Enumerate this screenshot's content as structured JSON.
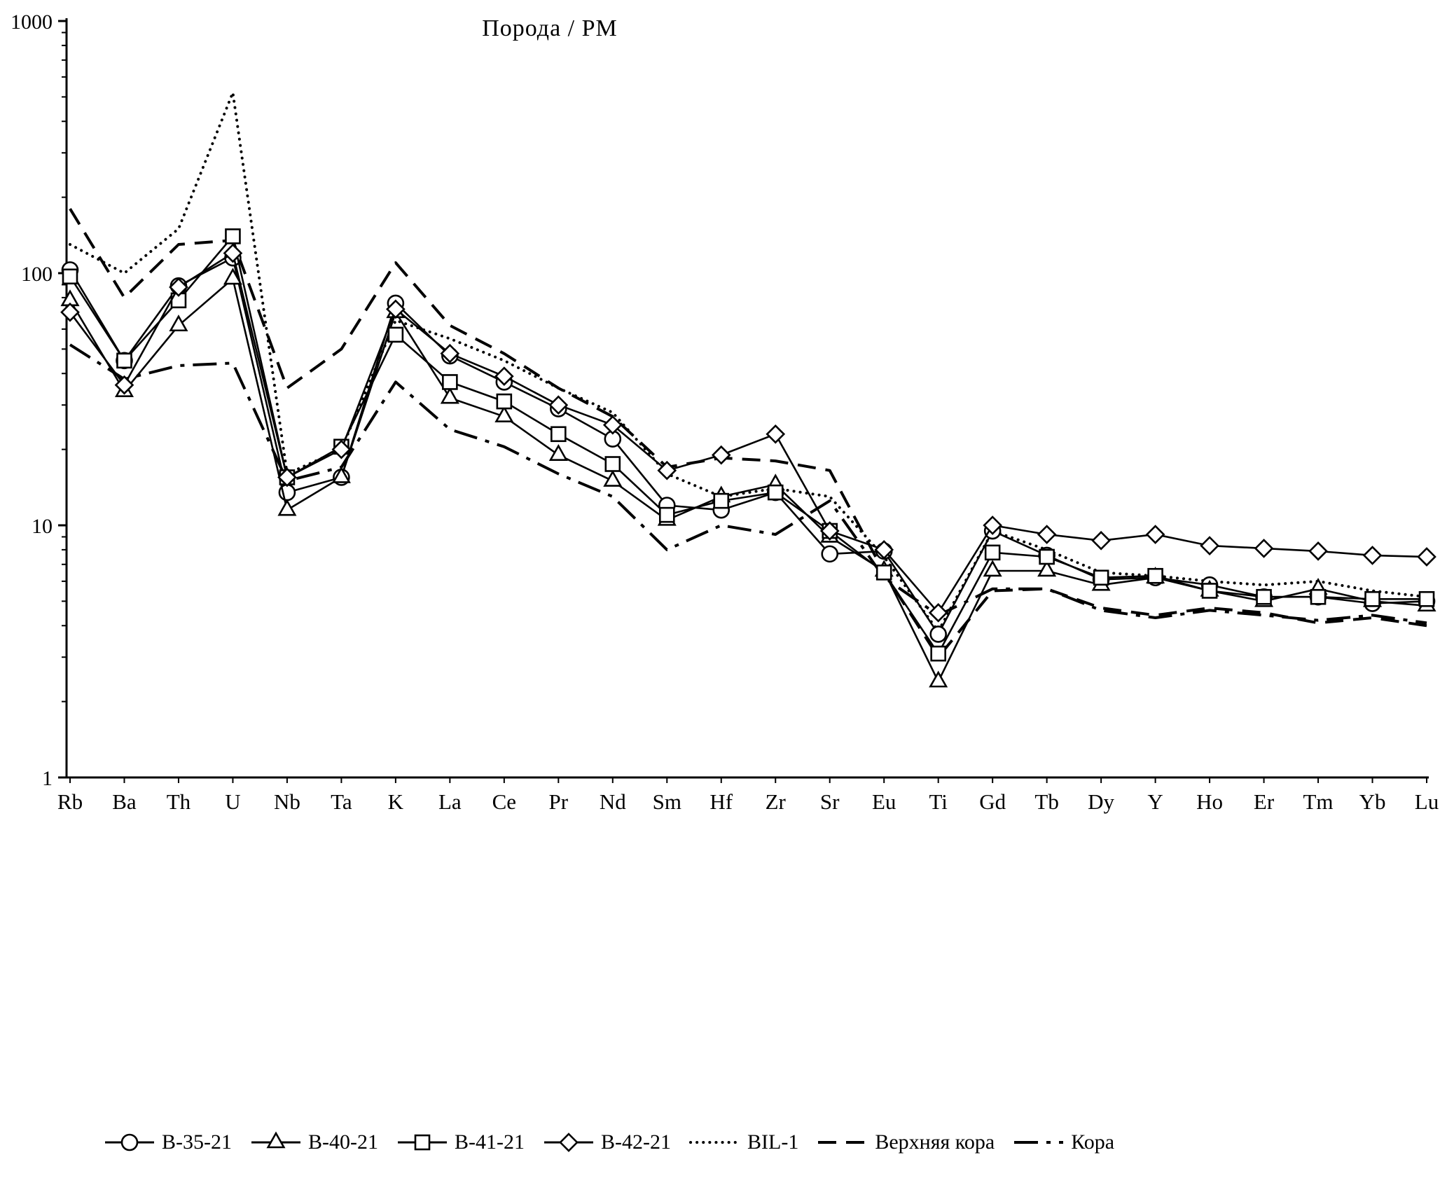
{
  "chart_data": {
    "type": "line",
    "title": "Порода / PM",
    "y_scale": "log",
    "ylim": [
      1,
      1000
    ],
    "y_ticks": [
      1000,
      100,
      10,
      1
    ],
    "grid": false,
    "legend_position": "bottom",
    "line_color": "#000000",
    "categories": [
      "Rb",
      "Ba",
      "Th",
      "U",
      "Nb",
      "Ta",
      "K",
      "La",
      "Ce",
      "Pr",
      "Nd",
      "Sm",
      "Hf",
      "Zr",
      "Sr",
      "Eu",
      "Ti",
      "Gd",
      "Tb",
      "Dy",
      "Y",
      "Ho",
      "Er",
      "Tm",
      "Yb",
      "Lu"
    ],
    "series": [
      {
        "name": "B-35-21",
        "marker": "circle",
        "line": "solid",
        "values": [
          103,
          45,
          89,
          115,
          13.5,
          15.5,
          76,
          47,
          37,
          29,
          22,
          12,
          11.5,
          13.5,
          7.7,
          7.9,
          3.7,
          9.5,
          7.6,
          6.1,
          6.2,
          5.8,
          5.2,
          5.2,
          4.9,
          5.0
        ]
      },
      {
        "name": "B-40-21",
        "marker": "triangle",
        "line": "solid",
        "values": [
          78,
          34,
          62,
          95,
          11.5,
          15.5,
          70,
          32,
          27,
          19,
          15,
          10.5,
          13,
          14.5,
          9.0,
          6.6,
          2.4,
          6.6,
          6.6,
          5.8,
          6.2,
          5.5,
          5.0,
          5.6,
          5.0,
          4.8
        ]
      },
      {
        "name": "B-41-21",
        "marker": "square",
        "line": "solid",
        "values": [
          97,
          45,
          78,
          140,
          15.5,
          20.5,
          57,
          37,
          31,
          23,
          17.5,
          11,
          12.5,
          13.5,
          9.5,
          6.5,
          3.1,
          7.8,
          7.5,
          6.2,
          6.3,
          5.5,
          5.2,
          5.2,
          5.1,
          5.1
        ]
      },
      {
        "name": "B-42-21",
        "marker": "diamond",
        "line": "solid",
        "values": [
          70,
          36,
          88,
          120,
          15.5,
          20,
          72,
          48,
          39,
          30,
          25,
          16.5,
          19,
          23,
          9.5,
          8.0,
          4.5,
          10,
          9.2,
          8.7,
          9.2,
          8.3,
          8.1,
          7.9,
          7.6,
          7.5
        ]
      },
      {
        "name": "BIL-1",
        "marker": "none",
        "line": "dotted",
        "values": [
          130,
          100,
          150,
          520,
          16,
          20,
          65,
          55,
          45,
          35,
          28,
          16,
          13,
          14,
          13,
          7.5,
          3.8,
          9.5,
          8.0,
          6.5,
          6.3,
          6.0,
          5.8,
          6.0,
          5.5,
          5.2
        ]
      },
      {
        "name": "Верхняя кора",
        "marker": "none",
        "line": "dashed",
        "values": [
          180,
          80,
          130,
          135,
          35,
          50,
          110,
          62,
          48,
          35,
          27,
          17,
          18.5,
          18,
          16.5,
          6.5,
          3.0,
          5.5,
          5.6,
          4.7,
          4.4,
          4.7,
          4.5,
          4.1,
          4.3,
          4.0
        ]
      },
      {
        "name": "Кора",
        "marker": "none",
        "line": "dashdot",
        "values": [
          52,
          38,
          43,
          44,
          15,
          17,
          37,
          24,
          20.5,
          16,
          13,
          8.0,
          10,
          9.2,
          12.5,
          6.2,
          4.4,
          5.6,
          5.6,
          4.6,
          4.3,
          4.6,
          4.4,
          4.2,
          4.4,
          4.1
        ]
      }
    ]
  }
}
